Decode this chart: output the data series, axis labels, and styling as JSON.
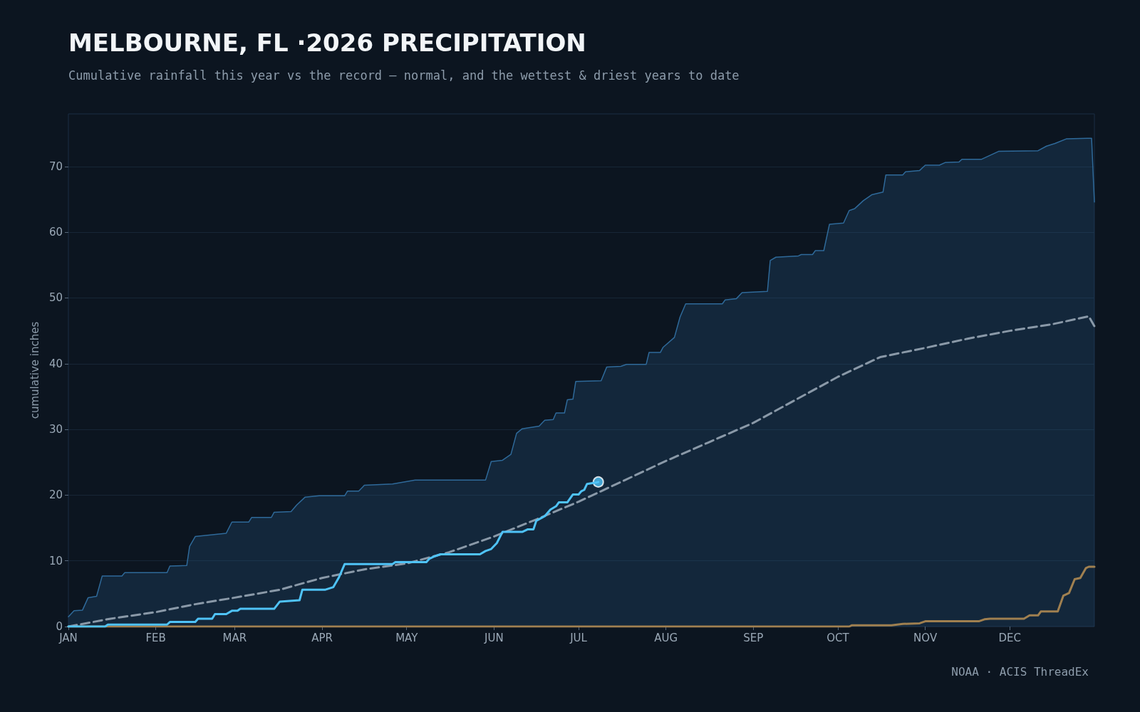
{
  "chart_data": {
    "type": "line",
    "title": "MELBOURNE, FL ·2026 PRECIPITATION",
    "subtitle": "Cumulative rainfall this year vs the record — normal, and the wettest & driest years to date",
    "ylabel": "cumulative inches",
    "annotations": [
      "NOAA · ACIS ThreadEx"
    ],
    "xlim": [
      "--01-01",
      "--12-31"
    ],
    "xticks": [
      {
        "value": "--01-01",
        "label": "JAN"
      },
      {
        "value": "--02-01",
        "label": "FEB"
      },
      {
        "value": "--03-01",
        "label": "MAR"
      },
      {
        "value": "--04-01",
        "label": "APR"
      },
      {
        "value": "--05-01",
        "label": "MAY"
      },
      {
        "value": "--06-01",
        "label": "JUN"
      },
      {
        "value": "--07-01",
        "label": "JUL"
      },
      {
        "value": "--08-01",
        "label": "AUG"
      },
      {
        "value": "--09-01",
        "label": "SEP"
      },
      {
        "value": "--10-01",
        "label": "OCT"
      },
      {
        "value": "--11-01",
        "label": "NOV"
      },
      {
        "value": "--12-01",
        "label": "DEC"
      }
    ],
    "ylim": [
      0,
      78
    ],
    "yticks": [
      0,
      10,
      20,
      30,
      40,
      50,
      60,
      70
    ],
    "grid": "y",
    "series": [
      {
        "type": "area",
        "color": "#2f6a9a",
        "x": [
          "--01-01",
          "--01-03",
          "--01-06",
          "--01-08",
          "--01-11",
          "--01-13",
          "--01-20",
          "--01-21",
          "--02-05",
          "--02-06",
          "--02-12",
          "--02-13",
          "--02-15",
          "--02-26",
          "--02-28",
          "--03-06",
          "--03-07",
          "--03-14",
          "--03-15",
          "--03-21",
          "--03-23",
          "--03-26",
          "--03-31",
          "--04-09",
          "--04-10",
          "--04-14",
          "--04-16",
          "--04-26",
          "--05-04",
          "--05-29",
          "--05-31",
          "--06-04",
          "--06-07",
          "--06-09",
          "--06-11",
          "--06-17",
          "--06-19",
          "--06-22",
          "--06-23",
          "--06-26",
          "--06-27",
          "--06-29",
          "--06-30",
          "--07-09",
          "--07-11",
          "--07-16",
          "--07-18",
          "--07-25",
          "--07-26",
          "--07-30",
          "--07-31",
          "--08-04",
          "--08-06",
          "--08-08",
          "--08-21",
          "--08-22",
          "--08-26",
          "--08-28",
          "--09-06",
          "--09-07",
          "--09-09",
          "--09-17",
          "--09-18",
          "--09-22",
          "--09-23",
          "--09-26",
          "--09-28",
          "--10-03",
          "--10-05",
          "--10-07",
          "--10-10",
          "--10-13",
          "--10-17",
          "--10-18",
          "--10-24",
          "--10-25",
          "--10-30",
          "--11-01",
          "--11-06",
          "--11-08",
          "--11-13",
          "--11-14",
          "--11-21",
          "--11-27",
          "--12-11",
          "--12-14",
          "--12-17",
          "--12-21",
          "--12-30",
          "--12-31"
        ],
        "values": [
          1.5,
          2.4,
          2.5,
          4.4,
          4.6,
          7.7,
          7.7,
          8.2,
          8.2,
          9.2,
          9.3,
          12.2,
          13.7,
          14.2,
          15.9,
          15.9,
          16.6,
          16.6,
          17.4,
          17.5,
          18.5,
          19.7,
          19.9,
          19.9,
          20.6,
          20.6,
          21.5,
          21.7,
          22.3,
          22.3,
          25.1,
          25.3,
          26.2,
          29.4,
          30.1,
          30.5,
          31.4,
          31.5,
          32.5,
          32.5,
          34.5,
          34.6,
          37.3,
          37.4,
          39.5,
          39.6,
          39.9,
          39.9,
          41.7,
          41.7,
          42.5,
          44,
          47.1,
          49.1,
          49.1,
          49.7,
          49.9,
          50.8,
          51,
          55.7,
          56.2,
          56.4,
          56.6,
          56.6,
          57.2,
          57.2,
          61.2,
          61.4,
          63.3,
          63.6,
          64.8,
          65.7,
          66.1,
          68.7,
          68.7,
          69.2,
          69.4,
          70.2,
          70.2,
          70.6,
          70.7,
          71.1,
          71.1,
          72.3,
          72.4,
          73.1,
          73.5,
          74.2,
          74.3,
          64.6
        ]
      },
      {
        "color": "#a08050",
        "x": [
          "--01-01",
          "--10-05",
          "--10-06",
          "--10-20",
          "--10-24",
          "--10-30",
          "--11-01",
          "--11-20",
          "--11-22",
          "--11-24",
          "--12-06",
          "--12-08",
          "--12-11",
          "--12-12",
          "--12-18",
          "--12-20",
          "--12-22",
          "--12-24",
          "--12-26",
          "--12-28",
          "--12-29",
          "--12-31"
        ],
        "values": [
          0,
          0,
          0.2,
          0.2,
          0.4,
          0.5,
          0.8,
          0.8,
          1.1,
          1.2,
          1.2,
          1.7,
          1.7,
          2.3,
          2.3,
          4.7,
          5.1,
          7.2,
          7.4,
          8.9,
          9.1,
          9.1
        ]
      },
      {
        "color": "#8a99a8",
        "line_style": "dashed",
        "x": [
          "--01-01",
          "--01-16",
          "--02-01",
          "--02-15",
          "--03-01",
          "--03-17",
          "--04-01",
          "--04-16",
          "--05-01",
          "--05-16",
          "--06-01",
          "--06-16",
          "--07-01",
          "--07-16",
          "--08-01",
          "--08-16",
          "--09-01",
          "--09-16",
          "--10-01",
          "--10-16",
          "--11-01",
          "--11-16",
          "--12-01",
          "--12-16",
          "--12-29",
          "--12-31"
        ],
        "values": [
          0,
          1.2,
          2.2,
          3.4,
          4.4,
          5.6,
          7.4,
          8.7,
          9.6,
          11.3,
          13.7,
          16.3,
          19,
          22,
          25.2,
          28,
          31,
          34.5,
          38,
          41,
          42.4,
          43.8,
          45,
          46,
          47.2,
          45.7
        ]
      },
      {
        "type": "scatter",
        "color": "#4fc3f7",
        "marker": "circle",
        "x": [
          "--07-08"
        ],
        "values": [
          22
        ]
      },
      {
        "color": "#4fc3f7",
        "x": [
          "--01-01",
          "--01-14",
          "--01-15",
          "--02-05",
          "--02-06",
          "--02-15",
          "--02-16",
          "--02-21",
          "--02-22",
          "--02-26",
          "--02-28",
          "--03-02",
          "--03-03",
          "--03-15",
          "--03-17",
          "--03-24",
          "--03-25",
          "--04-02",
          "--04-05",
          "--04-07",
          "--04-09",
          "--04-26",
          "--04-27",
          "--05-08",
          "--05-09",
          "--05-11",
          "--05-13",
          "--05-27",
          "--05-29",
          "--05-31",
          "--06-02",
          "--06-04",
          "--06-11",
          "--06-13",
          "--06-15",
          "--06-16",
          "--06-19",
          "--06-21",
          "--06-23",
          "--06-24",
          "--06-27",
          "--06-29",
          "--07-01",
          "--07-02",
          "--07-03",
          "--07-04",
          "--07-07",
          "--07-08"
        ],
        "values": [
          0,
          0,
          0.3,
          0.3,
          0.7,
          0.7,
          1.2,
          1.2,
          1.9,
          1.9,
          2.4,
          2.4,
          2.7,
          2.7,
          3.8,
          4,
          5.6,
          5.6,
          6,
          7.5,
          9.5,
          9.5,
          9.8,
          9.8,
          10.3,
          10.7,
          11,
          11,
          11.5,
          11.8,
          12.7,
          14.4,
          14.4,
          14.8,
          14.8,
          16.1,
          16.8,
          17.8,
          18.3,
          18.9,
          18.9,
          20.1,
          20.1,
          20.6,
          20.8,
          21.7,
          21.9,
          22
        ]
      }
    ]
  }
}
